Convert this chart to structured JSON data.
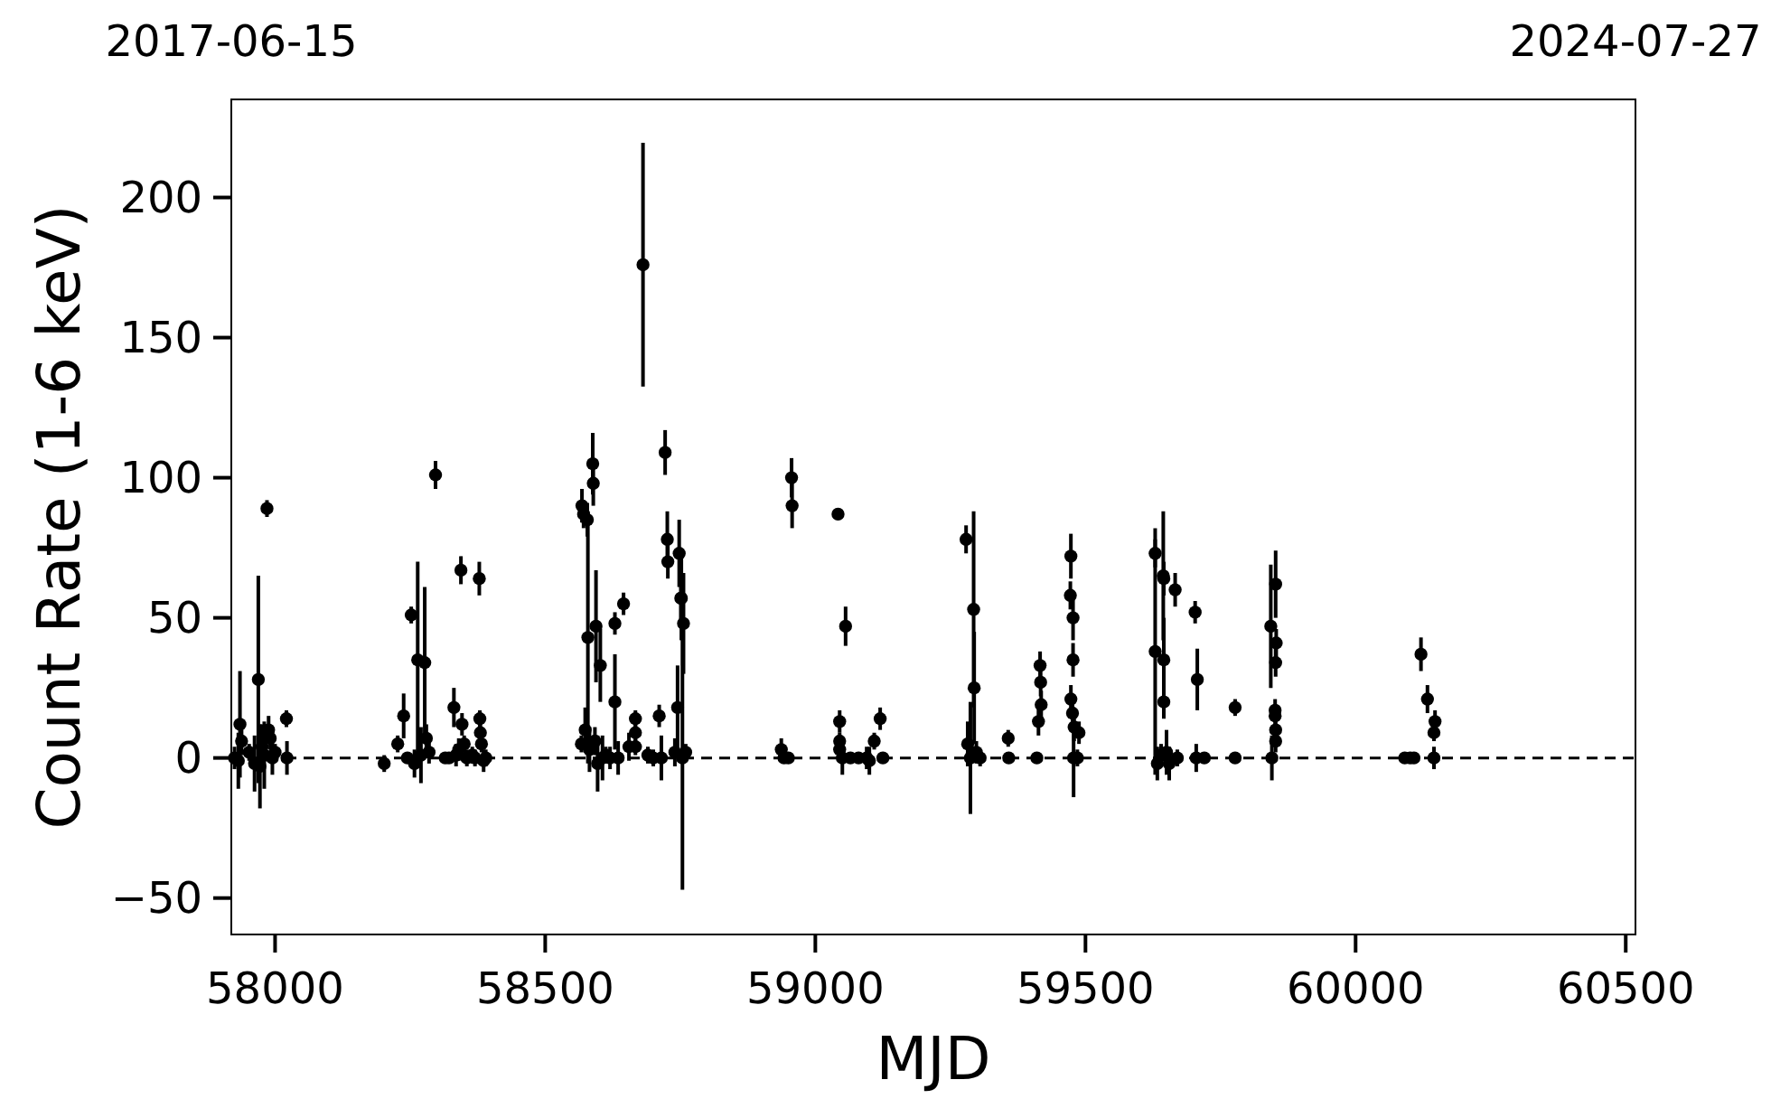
{
  "chart_data": {
    "type": "scatter",
    "xlabel": "MJD",
    "ylabel": "Count Rate (1-6 keV)",
    "color": "#000000",
    "marker": "circle",
    "xlim": [
      57919,
      60518
    ],
    "xticks": [
      58000,
      58500,
      59000,
      59500,
      60000,
      60500
    ],
    "ylim": [
      -63,
      235
    ],
    "yticks": [
      {
        "value": -50,
        "label": "−50"
      },
      0,
      50,
      100,
      150,
      200
    ],
    "annotations": [
      "2017-06-15",
      "2024-07-27"
    ],
    "ref_lines": [
      {
        "axis": "y",
        "value": 0,
        "line_style": "dashed",
        "color": "#000000"
      }
    ],
    "x": [
      57925,
      57932,
      57935,
      57938,
      57952,
      57962,
      57969,
      57972,
      57976,
      57980,
      57985,
      57988,
      57991,
      57995,
      58000,
      58021,
      58022,
      58202,
      58227,
      58238,
      58245,
      58252,
      58258,
      58264,
      58270,
      58277,
      58280,
      58285,
      58297,
      58315,
      58322,
      58331,
      58335,
      58340,
      58344,
      58346,
      58350,
      58355,
      58365,
      58370,
      58378,
      58379,
      58380,
      58382,
      58386,
      58390,
      58567,
      58568,
      58571,
      58574,
      58578,
      58579,
      58582,
      58588,
      58589,
      58592,
      58594,
      58597,
      58602,
      58606,
      58612,
      58620,
      58629,
      58629,
      58635,
      58645,
      58655,
      58667,
      58667,
      58667,
      58681,
      58690,
      58700,
      58711,
      58715,
      58722,
      58726,
      58727,
      58740,
      58745,
      58748,
      58751,
      58752,
      58754,
      58756,
      58760,
      58937,
      58942,
      58950,
      58956,
      58957,
      59042,
      59045,
      59045,
      59045,
      59050,
      59056,
      59065,
      59080,
      59095,
      59100,
      59109,
      59120,
      59125,
      59279,
      59282,
      59287,
      59293,
      59294,
      59298,
      59305,
      59357,
      59358,
      59410,
      59413,
      59416,
      59417,
      59418,
      59473,
      59472,
      59477,
      59477,
      59473,
      59476,
      59479,
      59478,
      59485,
      59488,
      59629,
      59629,
      59633,
      59640,
      59644,
      59645,
      59645,
      59645,
      59650,
      59655,
      59666,
      59670,
      59703,
      59707,
      59705,
      59720,
      59777,
      59777,
      59843,
      59845,
      59852,
      59853,
      59852,
      59851,
      59851,
      59852,
      59852,
      60091,
      60101,
      60108,
      60121,
      60133,
      60147,
      60145,
      60145
    ],
    "values": [
      0,
      -1,
      12,
      6,
      2,
      -2,
      28,
      -3,
      4,
      1,
      89,
      10,
      7,
      0,
      2,
      14,
      0,
      -2,
      5,
      15,
      0,
      51,
      -2,
      35,
      1,
      34,
      7,
      2,
      101,
      0,
      0,
      18,
      1,
      3,
      67,
      12,
      5,
      0,
      1,
      0,
      64,
      14,
      9,
      5,
      -1,
      0,
      5,
      90,
      87,
      10,
      85,
      43,
      3,
      105,
      98,
      6,
      47,
      -2,
      33,
      0,
      1,
      0,
      48,
      20,
      0,
      55,
      4,
      14,
      9,
      4,
      176,
      1,
      0,
      15,
      0,
      109,
      78,
      70,
      2,
      18,
      73,
      57,
      57,
      0,
      48,
      2,
      3,
      0,
      0,
      100,
      90,
      87,
      13,
      6,
      3,
      0,
      47,
      0,
      0,
      0,
      -1,
      6,
      14,
      0,
      78,
      5,
      0,
      53,
      25,
      2,
      0,
      7,
      0,
      0,
      13,
      33,
      27,
      19,
      72,
      58,
      50,
      35,
      21,
      16,
      11,
      0,
      0,
      9,
      38,
      73,
      -2,
      1,
      65,
      64,
      35,
      20,
      2,
      -2,
      60,
      0,
      52,
      28,
      0,
      0,
      18,
      0,
      47,
      0,
      62,
      41,
      34,
      17,
      15,
      10,
      6,
      0,
      0,
      0,
      37,
      21,
      13,
      9,
      0
    ],
    "errors": [
      4,
      10,
      19,
      5,
      3,
      10,
      37,
      15,
      8,
      12,
      3,
      5,
      4,
      6,
      3,
      3,
      6,
      3,
      3,
      8,
      2,
      3,
      5,
      35,
      10,
      27,
      5,
      4,
      5,
      2,
      2,
      7,
      4,
      4,
      5,
      4,
      3,
      3,
      3,
      3,
      6,
      3,
      4,
      3,
      4,
      3,
      3,
      6,
      5,
      8,
      6,
      45,
      8,
      11,
      8,
      5,
      20,
      10,
      13,
      8,
      3,
      4,
      4,
      17,
      6,
      4,
      5,
      3,
      3,
      3,
      43.5,
      3,
      3,
      4,
      8,
      8,
      10,
      6,
      5,
      15,
      12,
      10,
      15,
      47,
      18,
      3,
      4,
      2,
      2,
      7,
      8,
      2,
      4,
      3,
      3,
      6,
      7,
      2,
      2,
      4,
      5,
      3,
      4,
      2,
      5,
      8,
      20,
      35,
      20,
      4,
      3,
      3,
      2,
      2,
      5,
      5,
      5,
      5,
      8,
      5,
      8,
      6,
      5,
      5,
      5,
      14,
      3,
      4,
      44,
      5,
      6,
      4,
      23,
      6,
      15,
      6,
      8,
      6,
      6,
      3,
      4,
      11,
      5,
      2,
      3,
      2,
      22,
      8,
      12,
      5,
      5,
      4,
      4,
      4,
      4,
      2,
      2,
      2,
      6,
      5,
      4,
      3,
      4
    ]
  }
}
